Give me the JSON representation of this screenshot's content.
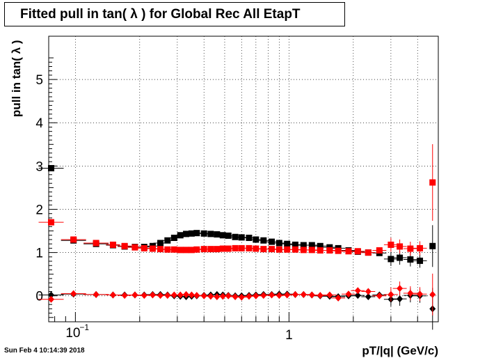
{
  "footer": "Sun Feb  4 10:14:39 2018",
  "chart_data": {
    "type": "scatter",
    "title": "Fitted pull in tan( λ ) for Global Rec All EtapT",
    "xlabel": "pT/|q| (GeV/c)",
    "ylabel": "pull in tan( λ )",
    "xscale": "log",
    "xlim": [
      0.075,
      5.0
    ],
    "ylim": [
      -0.6,
      6.0
    ],
    "grid": true,
    "y_ticks": [
      "0",
      "1",
      "2",
      "3",
      "4",
      "5"
    ],
    "x_ticks": [
      "10^-1",
      "1"
    ],
    "series": [
      {
        "marker": "square",
        "color": "#000000",
        "points": [
          [
            0.077,
            2.95
          ],
          [
            0.098,
            1.28
          ],
          [
            0.125,
            1.2
          ],
          [
            0.15,
            1.17
          ],
          [
            0.17,
            1.14
          ],
          [
            0.19,
            1.13
          ],
          [
            0.21,
            1.13
          ],
          [
            0.23,
            1.15
          ],
          [
            0.25,
            1.22
          ],
          [
            0.27,
            1.28
          ],
          [
            0.29,
            1.34
          ],
          [
            0.31,
            1.4
          ],
          [
            0.33,
            1.43
          ],
          [
            0.35,
            1.44
          ],
          [
            0.37,
            1.45
          ],
          [
            0.4,
            1.44
          ],
          [
            0.43,
            1.43
          ],
          [
            0.46,
            1.42
          ],
          [
            0.49,
            1.4
          ],
          [
            0.52,
            1.39
          ],
          [
            0.56,
            1.36
          ],
          [
            0.6,
            1.35
          ],
          [
            0.65,
            1.34
          ],
          [
            0.7,
            1.3
          ],
          [
            0.76,
            1.28
          ],
          [
            0.83,
            1.25
          ],
          [
            0.9,
            1.22
          ],
          [
            0.98,
            1.2
          ],
          [
            1.07,
            1.18
          ],
          [
            1.17,
            1.17
          ],
          [
            1.28,
            1.17
          ],
          [
            1.4,
            1.15
          ],
          [
            1.55,
            1.12
          ],
          [
            1.7,
            1.1
          ],
          [
            1.9,
            1.05
          ],
          [
            2.1,
            1.02
          ],
          [
            2.35,
            1.0
          ],
          [
            2.65,
            0.99
          ],
          [
            3.0,
            0.85
          ],
          [
            3.3,
            0.88
          ],
          [
            3.7,
            0.84
          ],
          [
            4.1,
            0.81
          ],
          [
            4.7,
            1.15
          ]
        ]
      },
      {
        "marker": "square",
        "color": "#ff0000",
        "points": [
          [
            0.077,
            1.7
          ],
          [
            0.098,
            1.3
          ],
          [
            0.125,
            1.22
          ],
          [
            0.15,
            1.18
          ],
          [
            0.17,
            1.15
          ],
          [
            0.19,
            1.12
          ],
          [
            0.21,
            1.1
          ],
          [
            0.23,
            1.09
          ],
          [
            0.25,
            1.08
          ],
          [
            0.27,
            1.07
          ],
          [
            0.29,
            1.07
          ],
          [
            0.31,
            1.06
          ],
          [
            0.33,
            1.06
          ],
          [
            0.35,
            1.06
          ],
          [
            0.37,
            1.07
          ],
          [
            0.4,
            1.08
          ],
          [
            0.43,
            1.08
          ],
          [
            0.46,
            1.08
          ],
          [
            0.49,
            1.09
          ],
          [
            0.52,
            1.09
          ],
          [
            0.56,
            1.1
          ],
          [
            0.6,
            1.1
          ],
          [
            0.65,
            1.1
          ],
          [
            0.7,
            1.09
          ],
          [
            0.76,
            1.08
          ],
          [
            0.83,
            1.08
          ],
          [
            0.9,
            1.07
          ],
          [
            0.98,
            1.07
          ],
          [
            1.07,
            1.07
          ],
          [
            1.17,
            1.06
          ],
          [
            1.28,
            1.06
          ],
          [
            1.4,
            1.05
          ],
          [
            1.55,
            1.05
          ],
          [
            1.7,
            1.04
          ],
          [
            1.9,
            1.03
          ],
          [
            2.1,
            1.03
          ],
          [
            2.35,
            1.0
          ],
          [
            2.65,
            1.05
          ],
          [
            3.0,
            1.18
          ],
          [
            3.3,
            1.14
          ],
          [
            3.7,
            1.09
          ],
          [
            4.1,
            1.1
          ],
          [
            4.7,
            2.62
          ]
        ]
      },
      {
        "marker": "diamond",
        "color": "#000000",
        "points": [
          [
            0.077,
            0.02
          ],
          [
            0.098,
            0.04
          ],
          [
            0.125,
            0.03
          ],
          [
            0.15,
            0.02
          ],
          [
            0.17,
            0.02
          ],
          [
            0.19,
            0.02
          ],
          [
            0.21,
            0.02
          ],
          [
            0.23,
            0.03
          ],
          [
            0.25,
            0.03
          ],
          [
            0.27,
            0.02
          ],
          [
            0.29,
            0.0
          ],
          [
            0.31,
            -0.01
          ],
          [
            0.33,
            -0.02
          ],
          [
            0.35,
            -0.01
          ],
          [
            0.37,
            0.0
          ],
          [
            0.4,
            0.01
          ],
          [
            0.43,
            0.02
          ],
          [
            0.46,
            0.03
          ],
          [
            0.49,
            0.02
          ],
          [
            0.52,
            0.01
          ],
          [
            0.56,
            0.0
          ],
          [
            0.6,
            0.0
          ],
          [
            0.65,
            0.01
          ],
          [
            0.7,
            0.02
          ],
          [
            0.76,
            0.03
          ],
          [
            0.83,
            0.03
          ],
          [
            0.9,
            0.04
          ],
          [
            0.98,
            0.04
          ],
          [
            1.07,
            0.03
          ],
          [
            1.17,
            0.03
          ],
          [
            1.28,
            0.02
          ],
          [
            1.4,
            0.0
          ],
          [
            1.55,
            -0.01
          ],
          [
            1.7,
            -0.02
          ],
          [
            1.9,
            0.0
          ],
          [
            2.1,
            0.01
          ],
          [
            2.35,
            -0.02
          ],
          [
            2.65,
            0.02
          ],
          [
            3.0,
            -0.08
          ],
          [
            3.3,
            -0.07
          ],
          [
            3.7,
            0.01
          ],
          [
            4.1,
            0.0
          ],
          [
            4.7,
            -0.3
          ]
        ]
      },
      {
        "marker": "diamond",
        "color": "#ff0000",
        "points": [
          [
            0.077,
            -0.08
          ],
          [
            0.098,
            0.05
          ],
          [
            0.125,
            0.03
          ],
          [
            0.15,
            0.02
          ],
          [
            0.17,
            0.01
          ],
          [
            0.19,
            0.02
          ],
          [
            0.21,
            0.01
          ],
          [
            0.23,
            0.02
          ],
          [
            0.25,
            0.01
          ],
          [
            0.27,
            0.01
          ],
          [
            0.29,
            0.02
          ],
          [
            0.31,
            0.02
          ],
          [
            0.33,
            0.03
          ],
          [
            0.35,
            0.02
          ],
          [
            0.37,
            0.01
          ],
          [
            0.4,
            0.0
          ],
          [
            0.43,
            -0.01
          ],
          [
            0.46,
            -0.02
          ],
          [
            0.49,
            -0.01
          ],
          [
            0.52,
            0.0
          ],
          [
            0.56,
            -0.02
          ],
          [
            0.6,
            -0.03
          ],
          [
            0.65,
            -0.01
          ],
          [
            0.7,
            0.0
          ],
          [
            0.76,
            0.01
          ],
          [
            0.83,
            0.02
          ],
          [
            0.9,
            0.01
          ],
          [
            0.98,
            0.02
          ],
          [
            1.07,
            0.03
          ],
          [
            1.17,
            0.03
          ],
          [
            1.28,
            0.02
          ],
          [
            1.4,
            0.01
          ],
          [
            1.55,
            0.02
          ],
          [
            1.7,
            -0.05
          ],
          [
            1.9,
            0.04
          ],
          [
            2.1,
            0.12
          ],
          [
            2.35,
            0.1
          ],
          [
            2.65,
            0.0
          ],
          [
            3.0,
            0.03
          ],
          [
            3.3,
            0.17
          ],
          [
            3.7,
            0.06
          ],
          [
            4.1,
            0.04
          ],
          [
            4.7,
            0.03
          ]
        ]
      }
    ]
  }
}
